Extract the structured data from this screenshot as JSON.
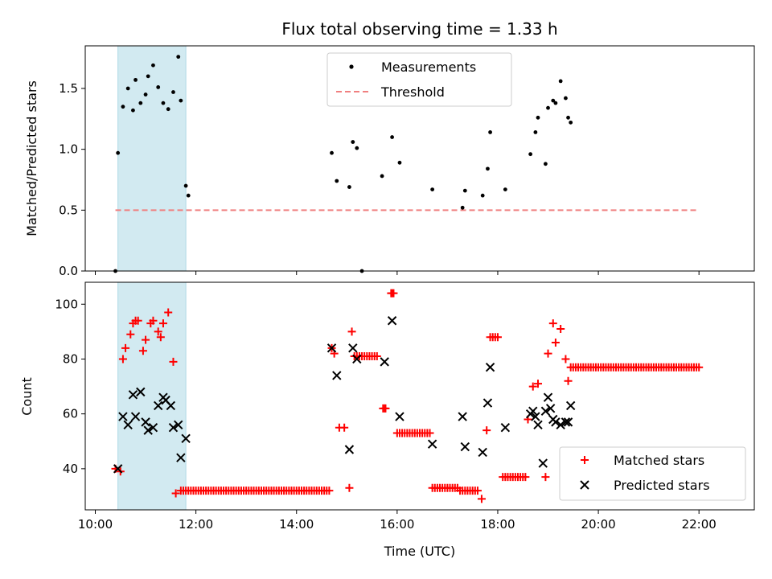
{
  "chart_data": {
    "title": "Flux total observing time = 1.33 h",
    "x_label": "Time (UTC)",
    "x_range_hours": [
      9.8,
      23.1
    ],
    "x_ticks": [
      {
        "value": 10,
        "label": "10:00"
      },
      {
        "value": 12,
        "label": "12:00"
      },
      {
        "value": 14,
        "label": "14:00"
      },
      {
        "value": 16,
        "label": "16:00"
      },
      {
        "value": 18,
        "label": "18:00"
      },
      {
        "value": 20,
        "label": "20:00"
      },
      {
        "value": 22,
        "label": "22:00"
      }
    ],
    "highlight_span_hours": [
      10.45,
      11.8
    ],
    "highlight_color": "#add8e6",
    "panels": [
      {
        "id": "ratio",
        "type": "scatter",
        "ylabel": "Matched/Predicted stars",
        "ylim": [
          0,
          1.85
        ],
        "y_ticks": [
          {
            "value": 0.0,
            "label": "0.0"
          },
          {
            "value": 0.5,
            "label": "0.5"
          },
          {
            "value": 1.0,
            "label": "1.0"
          },
          {
            "value": 1.5,
            "label": "1.5"
          }
        ],
        "legend": {
          "position": "upper-center",
          "entries": [
            "Measurements",
            "Threshold"
          ]
        },
        "threshold": {
          "name": "Threshold",
          "value": 0.5,
          "x_range": [
            10.4,
            22.0
          ],
          "color": "#f08080",
          "style": "dashed"
        },
        "series": [
          {
            "name": "Measurements",
            "marker": "dot",
            "color": "#000000",
            "x": [
              10.4,
              10.45,
              10.55,
              10.65,
              10.75,
              10.8,
              10.9,
              11.0,
              11.05,
              11.15,
              11.25,
              11.35,
              11.45,
              11.55,
              11.65,
              11.7,
              11.8,
              11.85,
              14.7,
              14.8,
              15.05,
              15.12,
              15.2,
              15.3,
              15.7,
              15.9,
              16.05,
              16.7,
              17.3,
              17.35,
              17.7,
              17.8,
              17.85,
              18.15,
              18.65,
              18.75,
              18.8,
              18.95,
              19.0,
              19.1,
              19.15,
              19.25,
              19.35,
              19.4,
              19.45
            ],
            "y": [
              0.0,
              0.97,
              1.35,
              1.5,
              1.32,
              1.57,
              1.38,
              1.45,
              1.6,
              1.69,
              1.51,
              1.38,
              1.33,
              1.47,
              1.76,
              1.4,
              0.7,
              0.62,
              0.97,
              0.74,
              0.69,
              1.06,
              1.01,
              0.0,
              0.78,
              1.1,
              0.89,
              0.67,
              0.52,
              0.66,
              0.62,
              0.84,
              1.14,
              0.67,
              0.96,
              1.14,
              1.26,
              0.88,
              1.34,
              1.4,
              1.38,
              1.56,
              1.42,
              1.26,
              1.22
            ]
          }
        ]
      },
      {
        "id": "count",
        "type": "scatter",
        "ylabel": "Count",
        "ylim": [
          25,
          108
        ],
        "y_ticks": [
          {
            "value": 40,
            "label": "40"
          },
          {
            "value": 60,
            "label": "60"
          },
          {
            "value": 80,
            "label": "80"
          },
          {
            "value": 100,
            "label": "100"
          }
        ],
        "legend": {
          "position": "lower-right",
          "entries": [
            "Matched stars",
            "Predicted stars"
          ]
        },
        "series": [
          {
            "name": "Matched stars",
            "marker": "plus",
            "color": "#ff0000",
            "x": [
              10.4,
              10.5,
              10.55,
              10.6,
              10.7,
              10.75,
              10.8,
              10.85,
              10.95,
              11.0,
              11.1,
              11.15,
              11.25,
              11.3,
              11.35,
              11.45,
              11.55,
              11.6,
              11.7,
              14.7,
              14.75,
              14.85,
              14.95,
              15.05,
              15.1,
              15.6,
              15.75,
              15.9,
              18.6,
              18.7,
              18.8,
              18.95,
              19.0,
              19.1,
              19.15,
              19.25,
              19.35,
              19.4
            ],
            "y": [
              40,
              39,
              80,
              84,
              89,
              93,
              94,
              94,
              83,
              87,
              93,
              94,
              90,
              88,
              93,
              97,
              79,
              31,
              32,
              84,
              82,
              55,
              55,
              33,
              90,
              81,
              62,
              104,
              58,
              70,
              71,
              37,
              82,
              93,
              86,
              91,
              80,
              72
            ],
            "runs": [
              {
                "x_start": 11.75,
                "x_end": 14.65,
                "y": 32
              },
              {
                "x_start": 15.15,
                "x_end": 15.55,
                "y": 81
              },
              {
                "x_start": 15.72,
                "x_end": 15.8,
                "y": 62
              },
              {
                "x_start": 15.88,
                "x_end": 15.95,
                "y": 104
              },
              {
                "x_start": 16.0,
                "x_end": 16.65,
                "y": 53
              },
              {
                "x_start": 16.7,
                "x_end": 17.2,
                "y": 33
              },
              {
                "x_start": 17.25,
                "x_end": 17.6,
                "y": 32
              },
              {
                "x_start": 17.68,
                "x_end": 17.72,
                "y": 29
              },
              {
                "x_start": 17.78,
                "x_end": 17.82,
                "y": 54
              },
              {
                "x_start": 17.85,
                "x_end": 18.0,
                "y": 88
              },
              {
                "x_start": 18.1,
                "x_end": 18.55,
                "y": 37
              },
              {
                "x_start": 19.45,
                "x_end": 22.0,
                "y": 77
              }
            ]
          },
          {
            "name": "Predicted stars",
            "marker": "x",
            "color": "#000000",
            "x": [
              10.45,
              10.55,
              10.65,
              10.75,
              10.8,
              10.9,
              11.0,
              11.05,
              11.15,
              11.25,
              11.35,
              11.4,
              11.5,
              11.55,
              11.65,
              11.7,
              11.8,
              14.7,
              14.8,
              15.05,
              15.12,
              15.2,
              15.75,
              15.9,
              16.05,
              16.7,
              17.3,
              17.35,
              17.7,
              17.8,
              17.85,
              18.15,
              18.65,
              18.7,
              18.75,
              18.8,
              18.9,
              18.95,
              19.0,
              19.05,
              19.1,
              19.15,
              19.25,
              19.35,
              19.4,
              19.45
            ],
            "y": [
              40,
              59,
              56,
              67,
              59,
              68,
              57,
              54,
              55,
              63,
              66,
              65,
              63,
              55,
              56,
              44,
              51,
              84,
              74,
              47,
              84,
              80,
              79,
              94,
              59,
              49,
              59,
              48,
              46,
              64,
              77,
              55,
              60,
              61,
              59,
              56,
              42,
              61,
              66,
              62,
              58,
              57,
              56,
              57,
              57,
              63
            ]
          }
        ]
      }
    ]
  }
}
